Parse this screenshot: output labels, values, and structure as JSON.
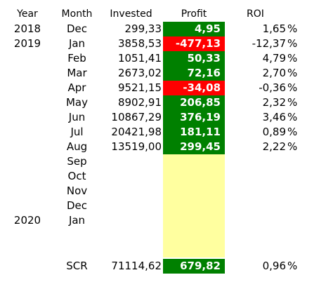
{
  "header": {
    "year": "Year",
    "month": "Month",
    "invested": "Invested",
    "profit": "Profit",
    "roi": "ROI"
  },
  "rows": [
    {
      "year": "2018",
      "month": "Dec",
      "invested": "299,33",
      "profit": "4,95",
      "roi": "1,65",
      "pct": "%",
      "status": "pos"
    },
    {
      "year": "2019",
      "month": "Jan",
      "invested": "3858,53",
      "profit": "-477,13",
      "roi": "-12,37",
      "pct": "%",
      "status": "neg"
    },
    {
      "year": "",
      "month": "Feb",
      "invested": "1051,41",
      "profit": "50,33",
      "roi": "4,79",
      "pct": "%",
      "status": "pos"
    },
    {
      "year": "",
      "month": "Mar",
      "invested": "2673,02",
      "profit": "72,16",
      "roi": "2,70",
      "pct": "%",
      "status": "pos"
    },
    {
      "year": "",
      "month": "Apr",
      "invested": "9521,15",
      "profit": "-34,08",
      "roi": "-0,36",
      "pct": "%",
      "status": "neg"
    },
    {
      "year": "",
      "month": "May",
      "invested": "8902,91",
      "profit": "206,85",
      "roi": "2,32",
      "pct": "%",
      "status": "pos"
    },
    {
      "year": "",
      "month": "Jun",
      "invested": "10867,29",
      "profit": "376,19",
      "roi": "3,46",
      "pct": "%",
      "status": "pos"
    },
    {
      "year": "",
      "month": "Jul",
      "invested": "20421,98",
      "profit": "181,11",
      "roi": "0,89",
      "pct": "%",
      "status": "pos"
    },
    {
      "year": "",
      "month": "Aug",
      "invested": "13519,00",
      "profit": "299,45",
      "roi": "2,22",
      "pct": "%",
      "status": "pos"
    },
    {
      "year": "",
      "month": "Sep",
      "invested": "",
      "profit": "",
      "roi": "",
      "pct": "",
      "status": "empty"
    },
    {
      "year": "",
      "month": "Oct",
      "invested": "",
      "profit": "",
      "roi": "",
      "pct": "",
      "status": "empty"
    },
    {
      "year": "",
      "month": "Nov",
      "invested": "",
      "profit": "",
      "roi": "",
      "pct": "",
      "status": "empty"
    },
    {
      "year": "",
      "month": "Dec",
      "invested": "",
      "profit": "",
      "roi": "",
      "pct": "",
      "status": "empty"
    },
    {
      "year": "2020",
      "month": "Jan",
      "invested": "",
      "profit": "",
      "roi": "",
      "pct": "",
      "status": "empty"
    },
    {
      "year": "",
      "month": "",
      "invested": "",
      "profit": "",
      "roi": "",
      "pct": "",
      "status": "empty"
    },
    {
      "year": "",
      "month": "",
      "invested": "",
      "profit": "",
      "roi": "",
      "pct": "",
      "status": "empty"
    },
    {
      "year": "",
      "month": "SCR",
      "invested": "71114,62",
      "profit": "679,82",
      "roi": "0,96",
      "pct": "%",
      "status": "pos"
    }
  ],
  "colors": {
    "positive": "#008000",
    "negative": "#ff0000",
    "empty": "#ffff9f"
  }
}
